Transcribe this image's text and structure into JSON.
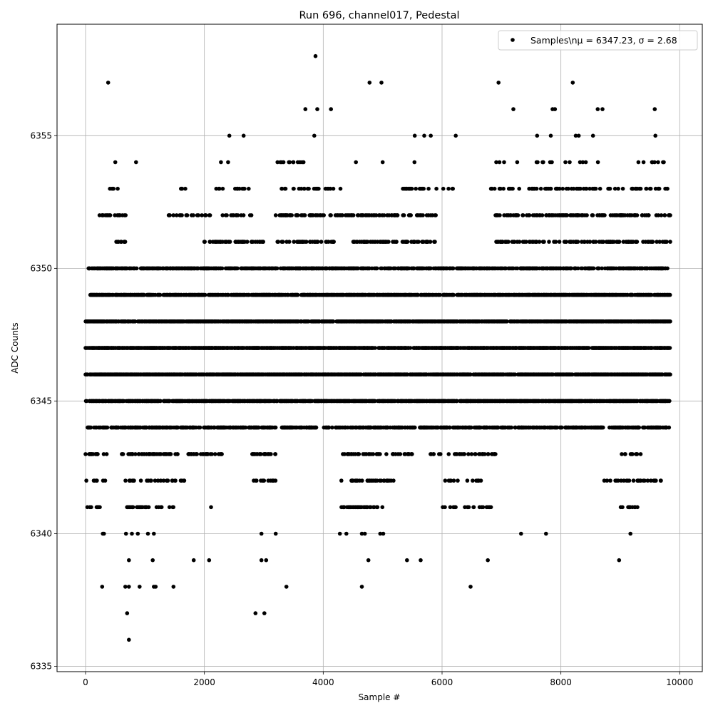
{
  "chart_data": {
    "type": "scatter",
    "title": "Run 696, channel017, Pedestal",
    "xlabel": "Sample #",
    "ylabel": "ADC Counts",
    "xlim": [
      -480,
      10380
    ],
    "ylim": [
      6334.8,
      6359.2
    ],
    "xticks": [
      0,
      2000,
      4000,
      6000,
      8000,
      10000
    ],
    "xtick_labels": [
      "0",
      "2000",
      "4000",
      "6000",
      "8000",
      "10000"
    ],
    "yticks": [
      6335,
      6340,
      6345,
      6350,
      6355
    ],
    "ytick_labels": [
      "6335",
      "6340",
      "6345",
      "6350",
      "6355"
    ],
    "grid": true,
    "legend": {
      "placement": "top-right",
      "entries": [
        {
          "label": "Samples\\nμ = 6347.23, σ = 2.68",
          "marker": "circle",
          "color": "#000000"
        }
      ]
    },
    "series": [
      {
        "name": "Samples\\nμ = 6347.23, σ = 2.68",
        "color": "#000000",
        "marker": "circle",
        "x_range": [
          0,
          9840
        ],
        "n_points": 9840,
        "level_density": [
          {
            "y": 6341,
            "segments": [
              [
                0,
                340
              ],
              [
                650,
                1500
              ],
              [
                2100,
                2150
              ],
              [
                4300,
                5000
              ],
              [
                6000,
                6850
              ],
              [
                9000,
                9300
              ]
            ],
            "density": 0.16
          },
          {
            "y": 6342,
            "segments": [
              [
                0,
                350
              ],
              [
                600,
                1700
              ],
              [
                2800,
                3200
              ],
              [
                4300,
                5200
              ],
              [
                6000,
                6700
              ],
              [
                8700,
                9700
              ]
            ],
            "density": 0.16
          },
          {
            "y": 6343,
            "segments": [
              [
                0,
                400
              ],
              [
                600,
                1600
              ],
              [
                1700,
                2300
              ],
              [
                2800,
                3200
              ],
              [
                4300,
                5500
              ],
              [
                5800,
                6900
              ],
              [
                9000,
                9350
              ]
            ],
            "density": 0.22
          },
          {
            "y": 6344,
            "segments": [
              [
                0,
                3200
              ],
              [
                3300,
                3900
              ],
              [
                4000,
                9840
              ]
            ],
            "density": 0.4
          },
          {
            "y": 6345,
            "segments": [
              [
                0,
                9840
              ]
            ],
            "density": 0.55
          },
          {
            "y": 6346,
            "segments": [
              [
                0,
                9840
              ]
            ],
            "density": 0.6
          },
          {
            "y": 6347,
            "segments": [
              [
                0,
                9840
              ]
            ],
            "density": 0.6
          },
          {
            "y": 6348,
            "segments": [
              [
                0,
                9840
              ]
            ],
            "density": 0.55
          },
          {
            "y": 6349,
            "segments": [
              [
                50,
                9840
              ]
            ],
            "density": 0.5
          },
          {
            "y": 6350,
            "segments": [
              [
                50,
                9840
              ]
            ],
            "density": 0.42
          },
          {
            "y": 6351,
            "segments": [
              [
                500,
                700
              ],
              [
                2000,
                3000
              ],
              [
                3200,
                4200
              ],
              [
                4500,
                5900
              ],
              [
                6900,
                9840
              ]
            ],
            "density": 0.22
          },
          {
            "y": 6352,
            "segments": [
              [
                200,
                700
              ],
              [
                1400,
                2800
              ],
              [
                3200,
                5000
              ],
              [
                5000,
                5900
              ],
              [
                6900,
                9840
              ]
            ],
            "density": 0.22
          },
          {
            "y": 6353,
            "segments": [
              [
                350,
                600
              ],
              [
                1600,
                1700
              ],
              [
                2200,
                2800
              ],
              [
                3300,
                4300
              ],
              [
                5300,
                6200
              ],
              [
                6800,
                9840
              ]
            ],
            "density": 0.14
          },
          {
            "y": 6354,
            "segments": [
              [
                2200,
                2500
              ],
              [
                3200,
                3900
              ],
              [
                5500,
                5800
              ],
              [
                6900,
                8700
              ],
              [
                9300,
                9840
              ]
            ],
            "density": 0.07
          }
        ],
        "sparse_points": [
          [
            380,
            6357
          ],
          [
            3870,
            6358
          ],
          [
            4780,
            6357
          ],
          [
            4980,
            6357
          ],
          [
            6950,
            6357
          ],
          [
            8200,
            6357
          ],
          [
            3700,
            6356
          ],
          [
            3900,
            6356
          ],
          [
            4130,
            6356
          ],
          [
            7200,
            6356
          ],
          [
            7860,
            6356
          ],
          [
            7900,
            6356
          ],
          [
            8620,
            6356
          ],
          [
            8700,
            6356
          ],
          [
            9580,
            6356
          ],
          [
            2420,
            6355
          ],
          [
            2660,
            6355
          ],
          [
            3850,
            6355
          ],
          [
            5540,
            6355
          ],
          [
            5700,
            6355
          ],
          [
            5810,
            6355
          ],
          [
            6230,
            6355
          ],
          [
            7600,
            6355
          ],
          [
            7830,
            6355
          ],
          [
            8250,
            6355
          ],
          [
            8300,
            6355
          ],
          [
            8540,
            6355
          ],
          [
            9590,
            6355
          ],
          [
            500,
            6354
          ],
          [
            850,
            6354
          ],
          [
            4550,
            6354
          ],
          [
            5000,
            6354
          ],
          [
            290,
            6340
          ],
          [
            310,
            6340
          ],
          [
            680,
            6340
          ],
          [
            780,
            6340
          ],
          [
            880,
            6340
          ],
          [
            1050,
            6340
          ],
          [
            1150,
            6340
          ],
          [
            2960,
            6340
          ],
          [
            3200,
            6340
          ],
          [
            4280,
            6340
          ],
          [
            4390,
            6340
          ],
          [
            4650,
            6340
          ],
          [
            4700,
            6340
          ],
          [
            4960,
            6340
          ],
          [
            5010,
            6340
          ],
          [
            7330,
            6340
          ],
          [
            7750,
            6340
          ],
          [
            9170,
            6340
          ],
          [
            730,
            6339
          ],
          [
            1130,
            6339
          ],
          [
            1820,
            6339
          ],
          [
            2080,
            6339
          ],
          [
            2960,
            6339
          ],
          [
            3040,
            6339
          ],
          [
            4760,
            6339
          ],
          [
            5410,
            6339
          ],
          [
            5640,
            6339
          ],
          [
            6770,
            6339
          ],
          [
            8980,
            6339
          ],
          [
            280,
            6338
          ],
          [
            670,
            6338
          ],
          [
            730,
            6338
          ],
          [
            910,
            6338
          ],
          [
            1150,
            6338
          ],
          [
            1180,
            6338
          ],
          [
            1480,
            6338
          ],
          [
            3380,
            6338
          ],
          [
            4650,
            6338
          ],
          [
            6480,
            6338
          ],
          [
            700,
            6337
          ],
          [
            2860,
            6337
          ],
          [
            3010,
            6337
          ],
          [
            730,
            6336
          ]
        ]
      }
    ]
  }
}
